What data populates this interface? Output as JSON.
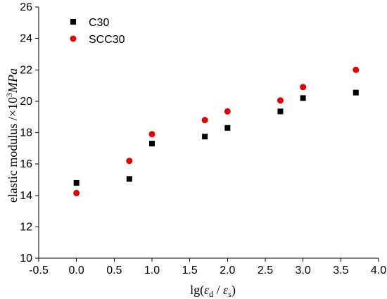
{
  "chart_data": {
    "type": "scatter",
    "title": "",
    "xlabel_parts": {
      "prefix": "lg(",
      "num_symbol": "ε",
      "num_sub": "d",
      "separator": " / ",
      "den_symbol": "ε",
      "den_sub": "s",
      "suffix": ")"
    },
    "ylabel_parts": {
      "prefix": "elastic modulus /×10",
      "power": "3",
      "unit": "MPa"
    },
    "xlim": [
      -0.5,
      4.0
    ],
    "ylim": [
      10,
      26
    ],
    "xticks": [
      -0.5,
      0.0,
      0.5,
      1.0,
      1.5,
      2.0,
      2.5,
      3.0,
      3.5,
      4.0
    ],
    "yticks": [
      10,
      12,
      14,
      16,
      18,
      20,
      22,
      24,
      26
    ],
    "xtick_labels": [
      "-0.5",
      "0.0",
      "0.5",
      "1.0",
      "1.5",
      "2.0",
      "2.5",
      "3.0",
      "3.5",
      "4.0"
    ],
    "ytick_labels": [
      "10",
      "12",
      "14",
      "16",
      "18",
      "20",
      "22",
      "24",
      "26"
    ],
    "grid": false,
    "legend_placement": "top-left",
    "series": [
      {
        "name": "C30",
        "marker": "square",
        "color": "#000000",
        "x": [
          0.0,
          0.7,
          1.0,
          1.7,
          2.0,
          2.7,
          3.0,
          3.7
        ],
        "y": [
          14.8,
          15.05,
          17.3,
          17.75,
          18.3,
          19.35,
          20.2,
          20.55
        ]
      },
      {
        "name": "SCC30",
        "marker": "circle",
        "color": "#e00000",
        "x": [
          0.0,
          0.7,
          1.0,
          1.7,
          2.0,
          2.7,
          3.0,
          3.7
        ],
        "y": [
          14.15,
          16.2,
          17.9,
          18.8,
          19.35,
          20.05,
          20.9,
          22.0
        ]
      }
    ]
  }
}
